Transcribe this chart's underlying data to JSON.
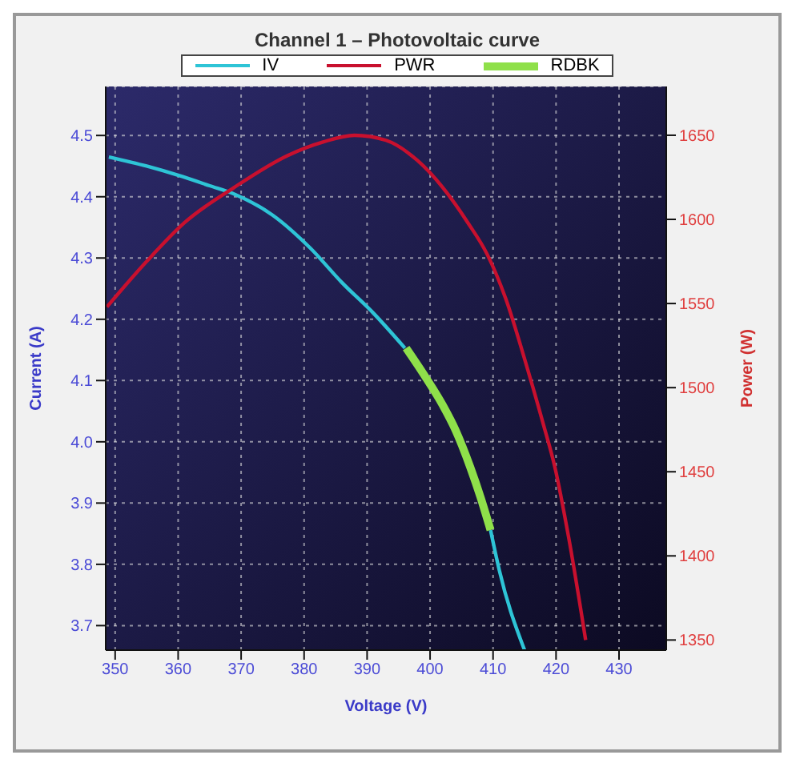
{
  "chart_data": {
    "type": "line",
    "title": "Channel 1 – Photovoltaic curve",
    "xlabel": "Voltage (V)",
    "ylabel": "Current (A)",
    "y2label": "Power (W)",
    "xlim": [
      348.5,
      437.5
    ],
    "xticks": [
      350,
      360,
      370,
      380,
      390,
      400,
      410,
      420,
      430
    ],
    "ylim": [
      3.66,
      4.58
    ],
    "yticks": [
      3.7,
      3.8,
      3.9,
      {
        "value": 4,
        "label": "4.0"
      },
      4.1,
      4.2,
      4.3,
      4.4,
      4.5
    ],
    "y2lim": [
      1344,
      1679
    ],
    "y2ticks": [
      1350,
      1400,
      1450,
      1500,
      1550,
      1600,
      1650
    ],
    "grid": true,
    "legend": "top",
    "series": [
      {
        "name": "IV",
        "color": "#2ec4d6",
        "x": [
          349,
          355,
          360,
          365,
          369,
          375,
          381,
          386,
          391,
          396,
          402,
          406.4,
          409.6,
          411,
          415
        ],
        "values": [
          4.465,
          4.45,
          4.435,
          4.418,
          4.404,
          4.37,
          4.316,
          4.26,
          4.21,
          4.153,
          null,
          null,
          3.856,
          3.79,
          3.66
        ]
      },
      {
        "name": "PWR",
        "color": "#c8102e",
        "axis": "y2",
        "x": [
          348.7,
          355,
          361,
          368.9,
          377.4,
          383,
          388,
          393,
          398,
          402,
          406,
          409.1,
          412,
          415.4,
          418,
          419.8,
          422,
          424.7
        ],
        "values": [
          1548,
          1575,
          1598,
          1619,
          1638,
          1646,
          1650,
          1647,
          1635,
          1619,
          1598,
          1579,
          1553,
          1512,
          1478,
          1453,
          1411,
          1350
        ]
      },
      {
        "name": "RDBK",
        "color": "#8fe04a",
        "x": [
          396.2,
          399,
          402,
          404,
          406.4,
          408,
          409.6
        ],
        "values": [
          4.153,
          4.11,
          4.06,
          4.02,
          3.958,
          3.91,
          3.856
        ]
      }
    ]
  }
}
